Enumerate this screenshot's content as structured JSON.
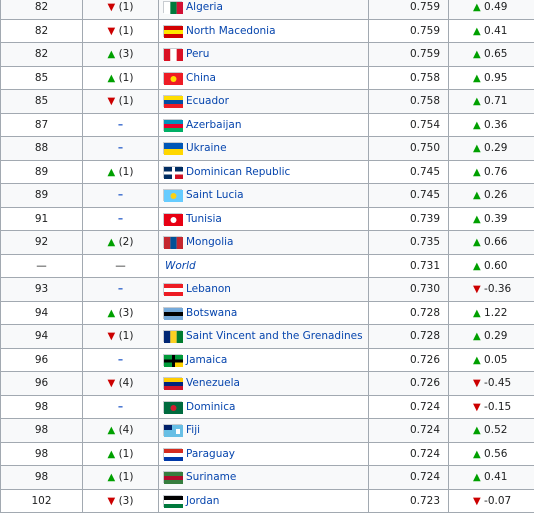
{
  "rows": [
    {
      "rank": "82",
      "dir": "down",
      "chg": "(1)",
      "flag": [
        "#ffffff",
        "#007a3d",
        "#d21034",
        "v"
      ],
      "country": "Algeria",
      "hdi": "0.759",
      "ddir": "up",
      "delta": "0.49"
    },
    {
      "rank": "82",
      "dir": "down",
      "chg": "(1)",
      "flag": [
        "#d20000",
        "#ffe600",
        "#d20000",
        "h"
      ],
      "country": "North Macedonia",
      "hdi": "0.759",
      "ddir": "up",
      "delta": "0.41"
    },
    {
      "rank": "82",
      "dir": "up",
      "chg": "(3)",
      "flag": [
        "#d91023",
        "#ffffff",
        "#d91023",
        "v"
      ],
      "country": "Peru",
      "hdi": "0.759",
      "ddir": "up",
      "delta": "0.65"
    },
    {
      "rank": "85",
      "dir": "up",
      "chg": "(1)",
      "flag": [
        "#ee1c25",
        "#ee1c25",
        "#ffde00",
        "s"
      ],
      "country": "China",
      "hdi": "0.758",
      "ddir": "up",
      "delta": "0.95"
    },
    {
      "rank": "85",
      "dir": "down",
      "chg": "(1)",
      "flag": [
        "#ffdd00",
        "#034ea2",
        "#ed1c24",
        "h"
      ],
      "country": "Ecuador",
      "hdi": "0.758",
      "ddir": "up",
      "delta": "0.71"
    },
    {
      "rank": "87",
      "dir": "none",
      "chg": "–",
      "flag": [
        "#0092bc",
        "#e4002b",
        "#00af66",
        "h"
      ],
      "country": "Azerbaijan",
      "hdi": "0.754",
      "ddir": "up",
      "delta": "0.36"
    },
    {
      "rank": "88",
      "dir": "none",
      "chg": "–",
      "flag": [
        "#0057b7",
        "#0057b7",
        "#ffd700",
        "h2"
      ],
      "country": "Ukraine",
      "hdi": "0.750",
      "ddir": "up",
      "delta": "0.29"
    },
    {
      "rank": "89",
      "dir": "up",
      "chg": "(1)",
      "flag": [
        "#002d62",
        "#ffffff",
        "#ce1126",
        "x"
      ],
      "country": "Dominican Republic",
      "hdi": "0.745",
      "ddir": "up",
      "delta": "0.76"
    },
    {
      "rank": "89",
      "dir": "none",
      "chg": "–",
      "flag": [
        "#66ccff",
        "#66ccff",
        "#fcd116",
        "s"
      ],
      "country": "Saint Lucia",
      "hdi": "0.745",
      "ddir": "up",
      "delta": "0.26"
    },
    {
      "rank": "91",
      "dir": "none",
      "chg": "–",
      "flag": [
        "#e70013",
        "#e70013",
        "#ffffff",
        "s"
      ],
      "country": "Tunisia",
      "hdi": "0.739",
      "ddir": "up",
      "delta": "0.39"
    },
    {
      "rank": "92",
      "dir": "up",
      "chg": "(2)",
      "flag": [
        "#c4272f",
        "#015197",
        "#c4272f",
        "v"
      ],
      "country": "Mongolia",
      "hdi": "0.735",
      "ddir": "up",
      "delta": "0.66"
    },
    {
      "rank": "—",
      "dir": "none",
      "chg": "—",
      "flag": null,
      "country": "World",
      "hdi": "0.731",
      "ddir": "up",
      "delta": "0.60",
      "world": true
    },
    {
      "rank": "93",
      "dir": "none",
      "chg": "–",
      "flag": [
        "#ed1c24",
        "#ffffff",
        "#ed1c24",
        "h"
      ],
      "country": "Lebanon",
      "hdi": "0.730",
      "ddir": "down",
      "delta": "-0.36"
    },
    {
      "rank": "94",
      "dir": "up",
      "chg": "(3)",
      "flag": [
        "#75aadb",
        "#000000",
        "#75aadb",
        "h"
      ],
      "country": "Botswana",
      "hdi": "0.728",
      "ddir": "up",
      "delta": "1.22"
    },
    {
      "rank": "94",
      "dir": "down",
      "chg": "(1)",
      "flag": [
        "#002674",
        "#fcd022",
        "#007c2e",
        "v"
      ],
      "country": "Saint Vincent and the Grenadines",
      "hdi": "0.728",
      "ddir": "up",
      "delta": "0.29"
    },
    {
      "rank": "96",
      "dir": "none",
      "chg": "–",
      "flag": [
        "#009b3a",
        "#000000",
        "#fed100",
        "x"
      ],
      "country": "Jamaica",
      "hdi": "0.726",
      "ddir": "up",
      "delta": "0.05"
    },
    {
      "rank": "96",
      "dir": "down",
      "chg": "(4)",
      "flag": [
        "#ffcc00",
        "#00247d",
        "#cf142b",
        "h"
      ],
      "country": "Venezuela",
      "hdi": "0.726",
      "ddir": "down",
      "delta": "-0.45"
    },
    {
      "rank": "98",
      "dir": "none",
      "chg": "–",
      "flag": [
        "#006b3f",
        "#fcd116",
        "#d41c30",
        "s"
      ],
      "country": "Dominica",
      "hdi": "0.724",
      "ddir": "down",
      "delta": "-0.15"
    },
    {
      "rank": "98",
      "dir": "up",
      "chg": "(4)",
      "flag": [
        "#68bfe5",
        "#68bfe5",
        "#012169",
        "c"
      ],
      "country": "Fiji",
      "hdi": "0.724",
      "ddir": "up",
      "delta": "0.52"
    },
    {
      "rank": "98",
      "dir": "up",
      "chg": "(1)",
      "flag": [
        "#d52b1e",
        "#ffffff",
        "#0038a8",
        "h"
      ],
      "country": "Paraguay",
      "hdi": "0.724",
      "ddir": "up",
      "delta": "0.56"
    },
    {
      "rank": "98",
      "dir": "up",
      "chg": "(1)",
      "flag": [
        "#377e3f",
        "#b40a2d",
        "#377e3f",
        "h"
      ],
      "country": "Suriname",
      "hdi": "0.724",
      "ddir": "up",
      "delta": "0.41"
    },
    {
      "rank": "102",
      "dir": "down",
      "chg": "(3)",
      "flag": [
        "#000000",
        "#ffffff",
        "#007a3d",
        "h"
      ],
      "country": "Jordan",
      "hdi": "0.723",
      "ddir": "down",
      "delta": "-0.07"
    }
  ]
}
